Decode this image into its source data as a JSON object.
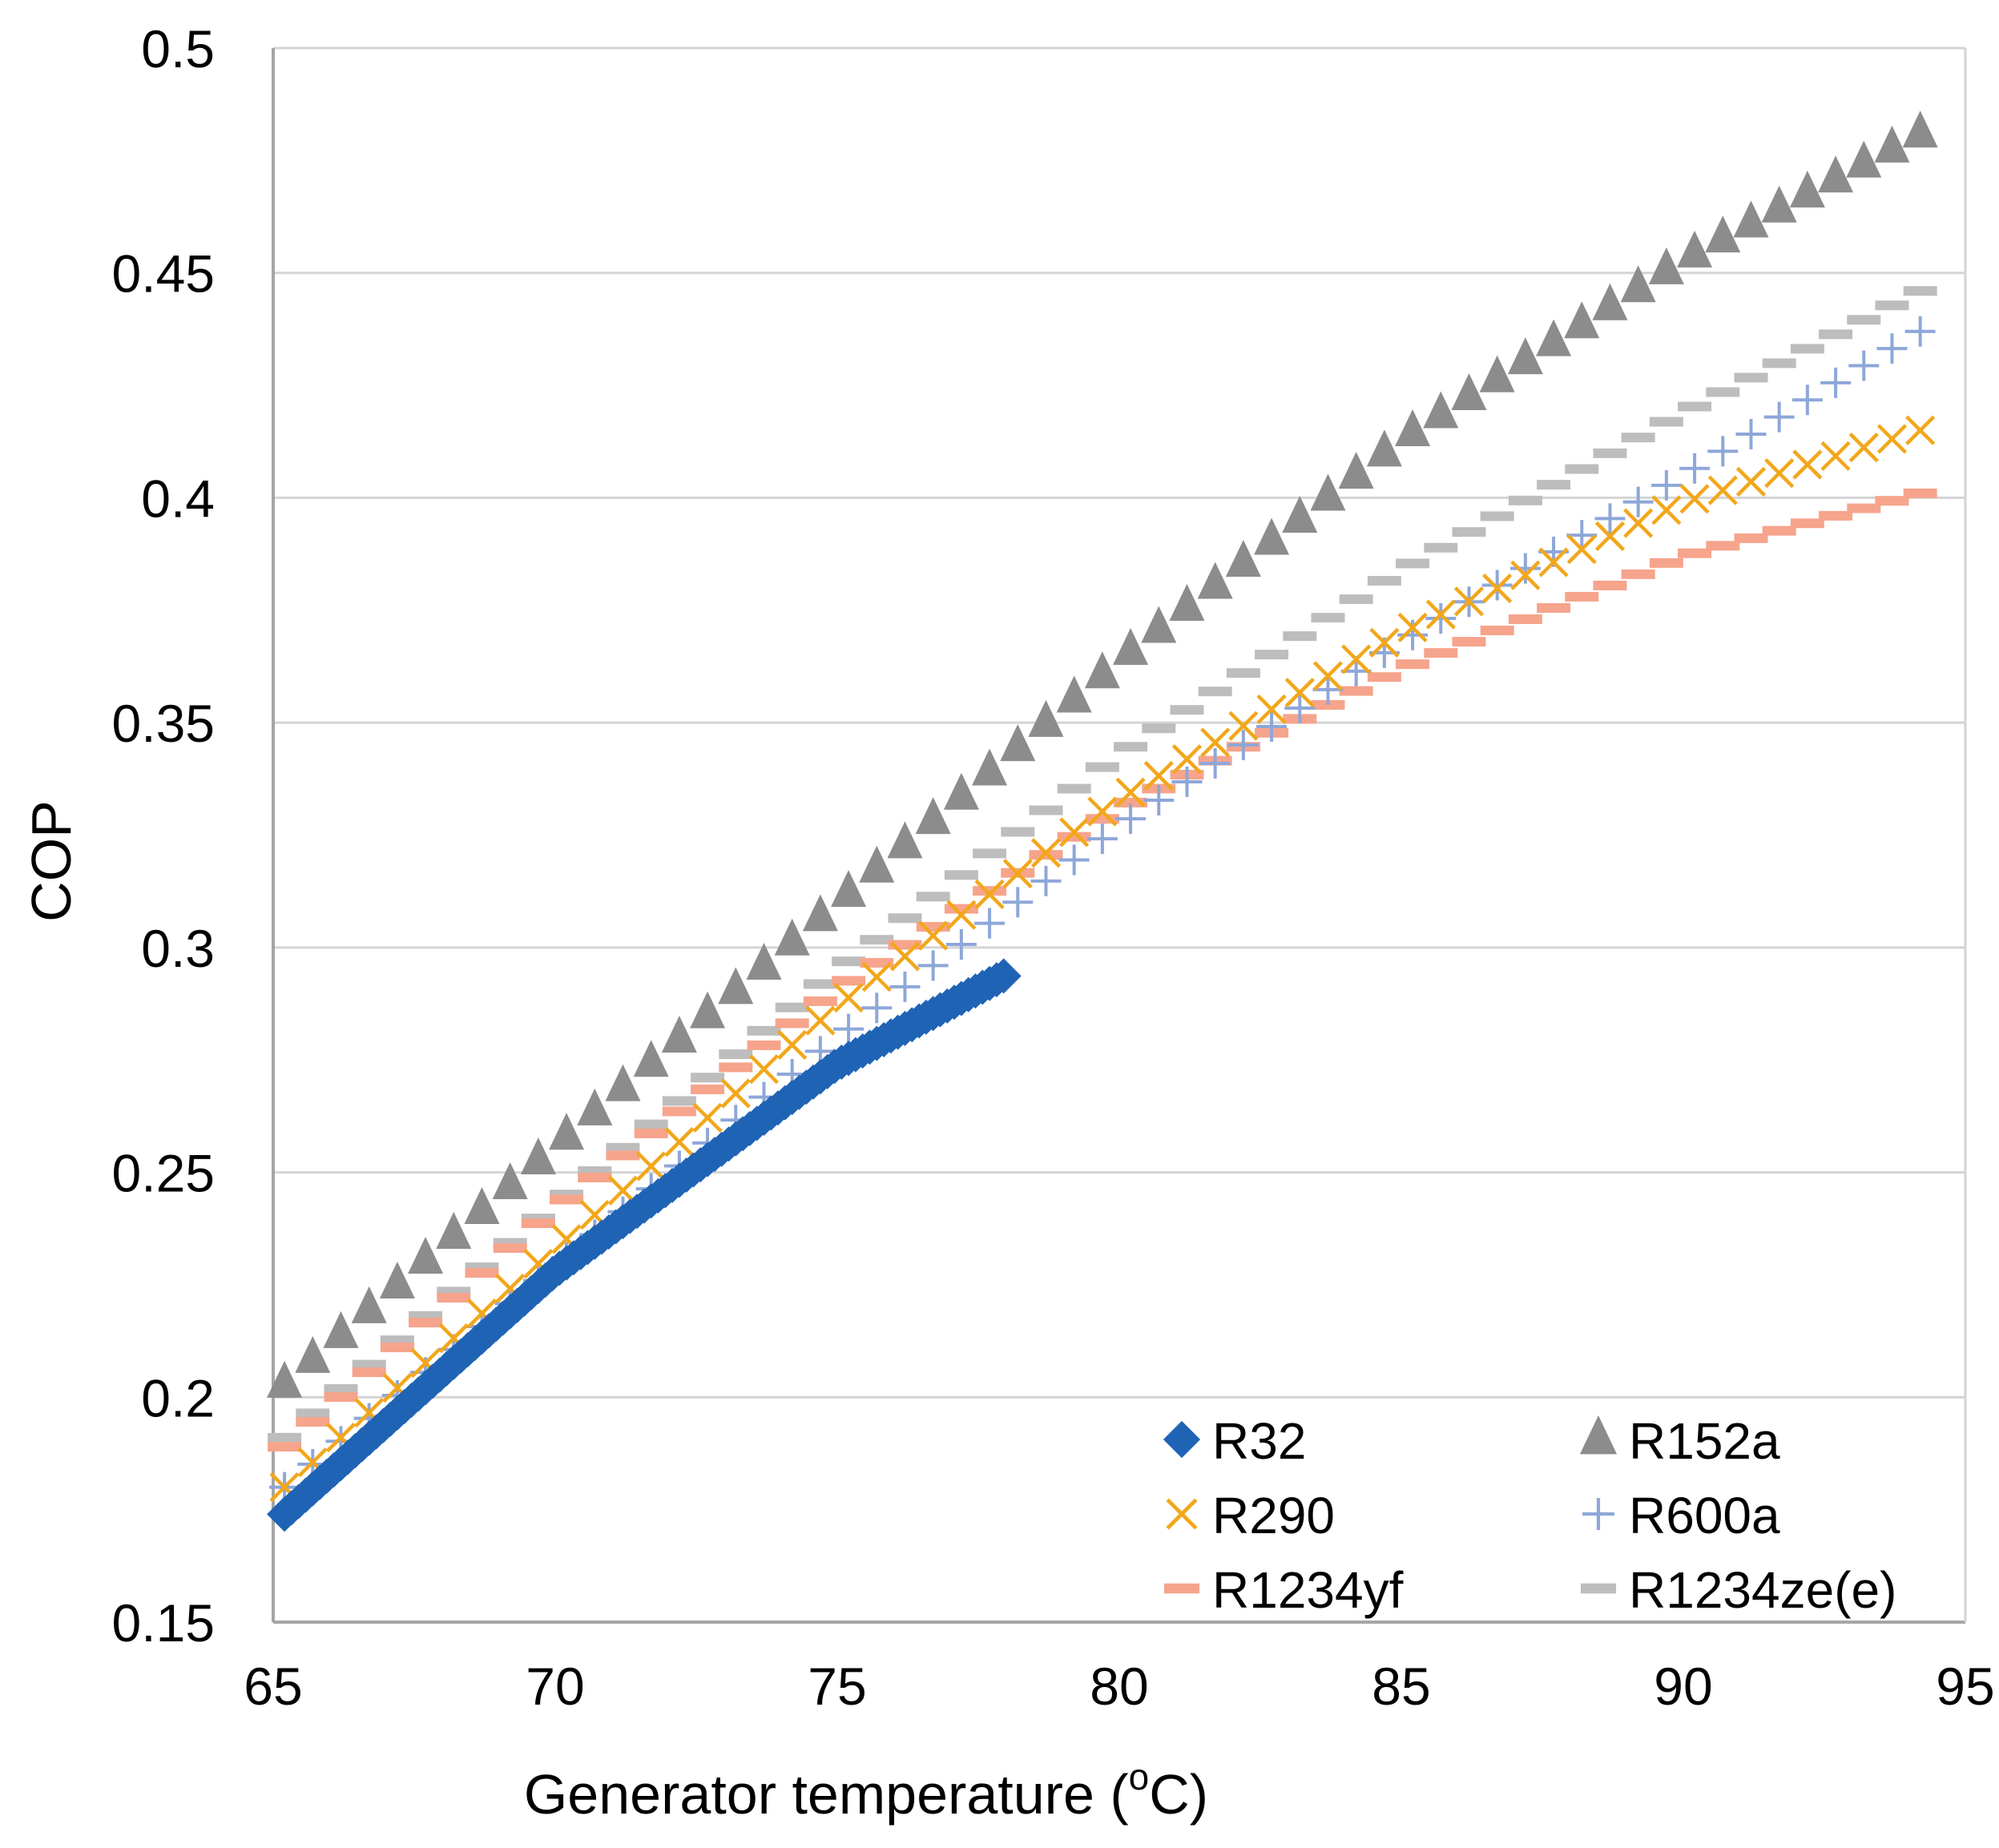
{
  "chart_data": {
    "type": "scatter",
    "title": "",
    "xlabel_prefix": "Generator temperature (",
    "xlabel_sup": "o",
    "xlabel_suffix": "C)",
    "ylabel": "COP",
    "xlim": [
      65,
      95
    ],
    "ylim": [
      0.15,
      0.5
    ],
    "xticks": [
      "65",
      "70",
      "75",
      "80",
      "85",
      "90",
      "95"
    ],
    "yticks": [
      "0.15",
      "0.2",
      "0.25",
      "0.3",
      "0.35",
      "0.4",
      "0.45",
      "0.5"
    ],
    "x_step": 0.5,
    "grid": "horizontal",
    "legend_position": "bottom-right",
    "series": [
      {
        "name": "R32",
        "marker": "diamond",
        "color": "#1F63B5",
        "x_start": 65.2,
        "x_end": 78.0,
        "curve_x": [
          65.2,
          70,
          75,
          78
        ],
        "curve_y": [
          0.174,
          0.228,
          0.274,
          0.294
        ]
      },
      {
        "name": "R152a",
        "marker": "triangle",
        "color": "#8C8C8C",
        "x_start": 65.2,
        "x_end": 94.2,
        "curve_x": [
          65.2,
          70,
          75,
          80,
          85,
          90,
          94.2
        ],
        "curve_y": [
          0.203,
          0.256,
          0.31,
          0.364,
          0.413,
          0.453,
          0.481
        ]
      },
      {
        "name": "R290",
        "marker": "x",
        "color": "#F2A71B",
        "x_start": 65.2,
        "x_end": 94.2,
        "curve_x": [
          65.2,
          70,
          75,
          80,
          85,
          90,
          94.2
        ],
        "curve_y": [
          0.18,
          0.233,
          0.287,
          0.333,
          0.37,
          0.399,
          0.415
        ]
      },
      {
        "name": "R600a",
        "marker": "plus",
        "color": "#8EA7D9",
        "x_start": 65.2,
        "x_end": 94.2,
        "curve_x": [
          65.2,
          70,
          75,
          80,
          85,
          90,
          94.2
        ],
        "curve_y": [
          0.18,
          0.229,
          0.28,
          0.327,
          0.368,
          0.405,
          0.437
        ]
      },
      {
        "name": "R1234yf",
        "marker": "dash",
        "color": "#F6A48C",
        "x_start": 65.2,
        "x_end": 94.2,
        "curve_x": [
          65.2,
          70,
          75,
          80,
          85,
          90,
          94.2
        ],
        "curve_y": [
          0.189,
          0.242,
          0.291,
          0.331,
          0.362,
          0.387,
          0.401
        ]
      },
      {
        "name": "R1234ze(e)",
        "marker": "dash",
        "color": "#BDBDBD",
        "x_start": 65.2,
        "x_end": 94.2,
        "curve_x": [
          65.2,
          70,
          75,
          80,
          85,
          90,
          94.2
        ],
        "curve_y": [
          0.191,
          0.243,
          0.295,
          0.343,
          0.384,
          0.419,
          0.446
        ]
      }
    ]
  }
}
